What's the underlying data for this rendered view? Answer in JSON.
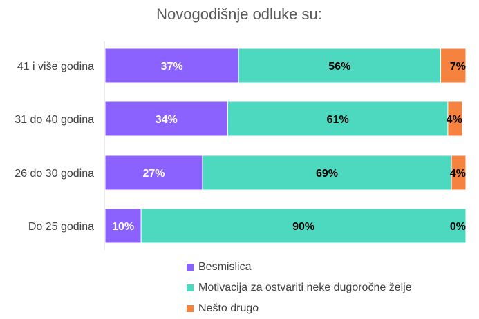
{
  "chart_data": {
    "type": "bar",
    "orientation": "horizontal",
    "stacked": true,
    "percent": true,
    "title": "Novogodišnje odluke su:",
    "categories": [
      "41 i više godina",
      "31 do 40 godina",
      "26 do 30 godina",
      "Do 25 godina"
    ],
    "series": [
      {
        "name": "Besmislica",
        "values": [
          37,
          34,
          27,
          10
        ],
        "color": "#8c62ff",
        "label_color": "#ffffff"
      },
      {
        "name": "Motivacija za ostvariti neke dugoročne želje",
        "values": [
          56,
          61,
          69,
          90
        ],
        "color": "#4dd8c0",
        "label_color": "#000000"
      },
      {
        "name": "Nešto drugo",
        "values": [
          7,
          4,
          4,
          0
        ],
        "color": "#f6823f",
        "label_color": "#000000"
      }
    ],
    "xlim": [
      0,
      100
    ],
    "legend_position": "bottom",
    "grid": false
  }
}
